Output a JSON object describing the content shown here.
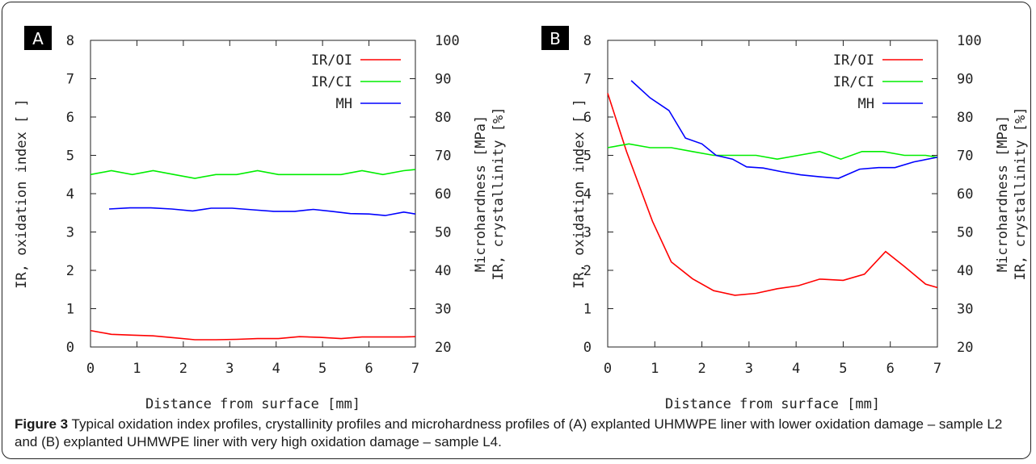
{
  "figure": {
    "caption_label": "Figure 3",
    "caption_text": " Typical oxidation index profiles, crystallinity profiles and microhardness profiles of (A) explanted UHMWPE liner with lower oxidation damage – sample L2 and (B) explanted UHMWPE liner with very high oxidation damage – sample L4."
  },
  "chart_data": [
    {
      "type": "line",
      "panel": "A",
      "xlabel": "Distance from surface [mm]",
      "ylabel": "IR, oxidation index [ ]",
      "y2label_line1": "Microhardness [MPa]",
      "y2label_line2": "IR, crystallinity [%]",
      "xlim": [
        0,
        7
      ],
      "ylim": [
        0,
        8
      ],
      "y2lim": [
        20,
        100
      ],
      "xticks": [
        "0",
        "1",
        "2",
        "3",
        "4",
        "5",
        "6",
        "7"
      ],
      "yticks": [
        "0",
        "1",
        "2",
        "3",
        "4",
        "5",
        "6",
        "7",
        "8"
      ],
      "y2ticks": [
        "20",
        "30",
        "40",
        "50",
        "60",
        "70",
        "80",
        "90",
        "100"
      ],
      "legend_position": "top-right",
      "series": [
        {
          "name": "IR/OI",
          "color": "#ff0000",
          "axis": "left",
          "x": [
            0,
            0.45,
            0.9,
            1.35,
            1.8,
            2.25,
            2.7,
            3.15,
            3.6,
            4.05,
            4.5,
            4.95,
            5.4,
            5.85,
            6.3,
            6.75,
            7.0
          ],
          "y": [
            0.43,
            0.33,
            0.31,
            0.29,
            0.24,
            0.19,
            0.19,
            0.2,
            0.22,
            0.22,
            0.27,
            0.25,
            0.22,
            0.26,
            0.26,
            0.26,
            0.27
          ]
        },
        {
          "name": "IR/CI",
          "color": "#00ee00",
          "axis": "right",
          "x": [
            0,
            0.45,
            0.9,
            1.35,
            1.8,
            2.25,
            2.7,
            3.15,
            3.6,
            4.05,
            4.5,
            4.95,
            5.4,
            5.85,
            6.3,
            6.75,
            7.0
          ],
          "y": [
            65,
            66,
            65,
            66,
            65,
            64,
            65,
            65,
            66,
            65,
            65,
            65,
            65,
            66,
            65,
            66,
            66.3
          ]
        },
        {
          "name": "MH",
          "color": "#0000ff",
          "axis": "right",
          "x": [
            0.4,
            0.85,
            1.3,
            1.75,
            2.2,
            2.6,
            3.05,
            3.5,
            3.95,
            4.4,
            4.8,
            5.2,
            5.6,
            6.0,
            6.35,
            6.75,
            7.0
          ],
          "y": [
            56,
            56.3,
            56.3,
            56,
            55.5,
            56.2,
            56.2,
            55.8,
            55.4,
            55.4,
            55.9,
            55.4,
            54.8,
            54.7,
            54.3,
            55.2,
            54.7
          ]
        }
      ]
    },
    {
      "type": "line",
      "panel": "B",
      "xlabel": "Distance from surface [mm]",
      "ylabel": "IR, oxidation index [ ]",
      "y2label_line1": "Microhardness [MPa]",
      "y2label_line2": "IR, crystallinity [%]",
      "xlim": [
        0,
        7
      ],
      "ylim": [
        0,
        8
      ],
      "y2lim": [
        20,
        100
      ],
      "xticks": [
        "0",
        "1",
        "2",
        "3",
        "4",
        "5",
        "6",
        "7"
      ],
      "yticks": [
        "0",
        "1",
        "2",
        "3",
        "4",
        "5",
        "6",
        "7",
        "8"
      ],
      "y2ticks": [
        "20",
        "30",
        "40",
        "50",
        "60",
        "70",
        "80",
        "90",
        "100"
      ],
      "legend_position": "top-right",
      "series": [
        {
          "name": "IR/OI",
          "color": "#ff0000",
          "axis": "left",
          "x": [
            0,
            0.4,
            0.95,
            1.35,
            1.8,
            2.25,
            2.7,
            3.15,
            3.6,
            4.05,
            4.5,
            5.0,
            5.45,
            5.9,
            6.3,
            6.75,
            7.0
          ],
          "y": [
            6.62,
            5.1,
            3.28,
            2.22,
            1.78,
            1.47,
            1.35,
            1.4,
            1.52,
            1.6,
            1.77,
            1.74,
            1.9,
            2.49,
            2.1,
            1.64,
            1.55
          ]
        },
        {
          "name": "IR/CI",
          "color": "#00ee00",
          "axis": "right",
          "x": [
            0,
            0.45,
            0.9,
            1.35,
            1.8,
            2.25,
            2.7,
            3.15,
            3.6,
            4.05,
            4.5,
            4.95,
            5.4,
            5.85,
            6.3,
            6.75,
            7.0
          ],
          "y": [
            72,
            73,
            72,
            72,
            71,
            70,
            70,
            70,
            69,
            70,
            71,
            69,
            71,
            71,
            70,
            70,
            69.5
          ]
        },
        {
          "name": "MH",
          "color": "#0000ff",
          "axis": "right",
          "x": [
            0.5,
            0.9,
            1.3,
            1.65,
            2.0,
            2.3,
            2.65,
            2.95,
            3.3,
            3.7,
            4.1,
            4.5,
            4.9,
            5.35,
            5.75,
            6.1,
            6.5,
            7.0
          ],
          "y": [
            89.5,
            85,
            81.7,
            74.5,
            73,
            70,
            69,
            67,
            66.7,
            65.7,
            64.9,
            64.4,
            64,
            66.4,
            66.8,
            66.8,
            68.3,
            69.5
          ]
        }
      ]
    }
  ]
}
